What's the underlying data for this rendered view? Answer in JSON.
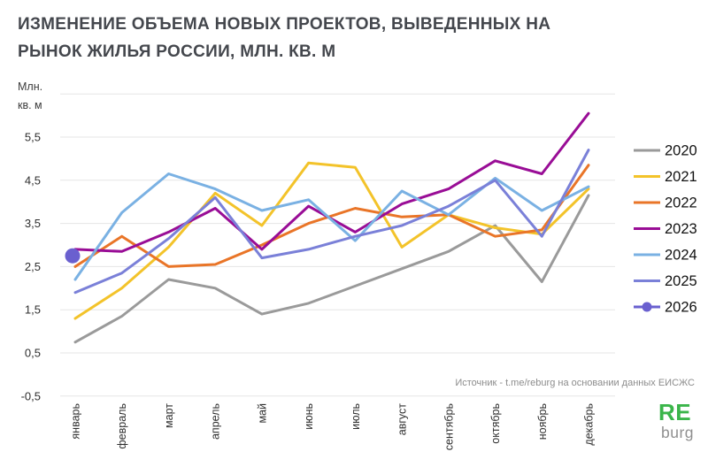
{
  "header": {
    "title": "ИЗМЕНЕНИЕ ОБЪЕМА НОВЫХ ПРОЕКТОВ, ВЫВЕДЕННЫХ НА РЫНОК ЖИЛЬЯ РОССИИ, МЛН. КВ. М"
  },
  "y_axis": {
    "unit_line1": "Млн.",
    "unit_line2": "кв. м",
    "tick_labels": [
      "5,5",
      "4,5",
      "3,5",
      "2,5",
      "1,5",
      "0,5",
      "-0,5"
    ]
  },
  "footer": {
    "source": "Источник - t.me/reburg на основании данных ЕИСЖС",
    "logo_top": "RE",
    "logo_bottom": "burg",
    "logo_color": "#3ab54a"
  },
  "chart_data": {
    "type": "line",
    "title": "Изменение объема новых проектов, выведенных на рынок жилья России, млн. кв. м",
    "xlabel": "",
    "ylabel": "Млн. кв. м",
    "ylim": [
      -0.5,
      6.5
    ],
    "grid": true,
    "legend_position": "right",
    "categories": [
      "январь",
      "февраль",
      "март",
      "апрель",
      "май",
      "июнь",
      "июль",
      "август",
      "сентябрь",
      "октябрь",
      "ноябрь",
      "декабрь"
    ],
    "series": [
      {
        "name": "2020",
        "color": "#9a9a9a",
        "values": [
          0.75,
          1.35,
          2.2,
          2.0,
          1.4,
          1.65,
          2.05,
          2.45,
          2.85,
          3.45,
          2.15,
          4.15
        ]
      },
      {
        "name": "2021",
        "color": "#f3c32a",
        "values": [
          1.3,
          2.0,
          2.95,
          4.2,
          3.45,
          4.9,
          4.8,
          2.95,
          3.7,
          3.4,
          3.25,
          4.3
        ]
      },
      {
        "name": "2022",
        "color": "#e97528",
        "values": [
          2.5,
          3.2,
          2.5,
          2.55,
          3.0,
          3.5,
          3.85,
          3.65,
          3.7,
          3.2,
          3.35,
          4.85
        ]
      },
      {
        "name": "2023",
        "color": "#990d96",
        "values": [
          2.9,
          2.85,
          3.3,
          3.85,
          2.9,
          3.9,
          3.3,
          3.95,
          4.3,
          4.95,
          4.65,
          6.05
        ]
      },
      {
        "name": "2024",
        "color": "#7ab1e3",
        "values": [
          2.2,
          3.75,
          4.65,
          4.3,
          3.8,
          4.05,
          3.1,
          4.25,
          3.7,
          4.55,
          3.8,
          4.35
        ]
      },
      {
        "name": "2025",
        "color": "#7a80d8",
        "values": [
          1.9,
          2.35,
          3.15,
          4.1,
          2.7,
          2.9,
          3.2,
          3.45,
          3.9,
          4.5,
          3.2,
          5.2
        ]
      },
      {
        "name": "2026",
        "color": "#6a60cf",
        "marker_only": true,
        "values": [
          2.75
        ]
      }
    ]
  }
}
